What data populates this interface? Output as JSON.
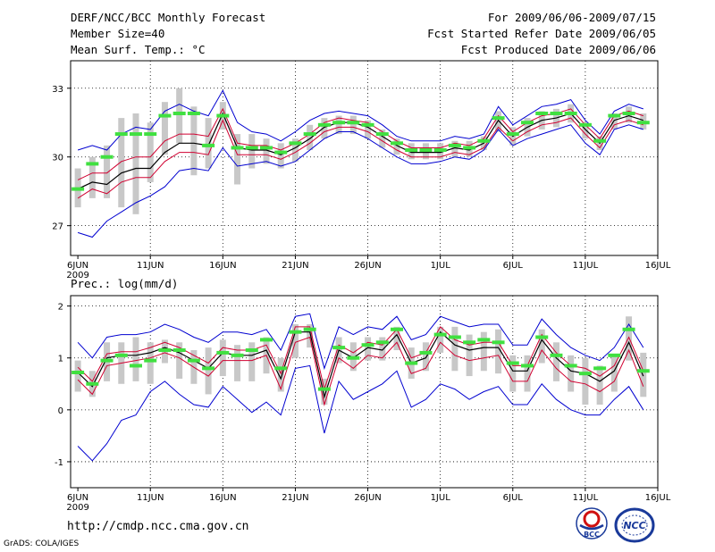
{
  "header": {
    "title": "DERF/NCC/BCC Monthly Forecast",
    "member_size": "Member Size=40",
    "variable": "Mean Surf. Temp.: °C",
    "period": "For 2009/06/06-2009/07/15",
    "started": "Fcst Started Refer Date 2009/06/05",
    "produced": "Fcst Produced Date 2009/06/06"
  },
  "footer": {
    "url": "http://cmdp.ncc.cma.gov.cn",
    "grads": "GrADS: COLA/IGES",
    "bcc_logo": "BCC",
    "ncc_logo": "NCC"
  },
  "colors": {
    "mean": "#000000",
    "inner": "#d00030",
    "outer": "#0000d0",
    "box": "#c8c8c8",
    "median": "#40e040",
    "grid": "#000000"
  },
  "chart_data": [
    {
      "type": "line",
      "title": "Mean Surf. Temp.: °C",
      "x": [
        1,
        2,
        3,
        4,
        5,
        6,
        7,
        8,
        9,
        10,
        11,
        12,
        13,
        14,
        15,
        16,
        17,
        18,
        19,
        20,
        21,
        22,
        23,
        24,
        25,
        26,
        27,
        28,
        29,
        30,
        31,
        32,
        33,
        34,
        35,
        36,
        37,
        38,
        39,
        40
      ],
      "xticks": [
        "6JUN",
        "11JUN",
        "16JUN",
        "21JUN",
        "26JUN",
        "1JUL",
        "6JUL",
        "11JUL",
        "16JUL"
      ],
      "xtick_positions": [
        1,
        6,
        11,
        16,
        21,
        26,
        31,
        36,
        41
      ],
      "xsublabel": "2009",
      "yticks": [
        27,
        30,
        33
      ],
      "ylim": [
        25.7,
        34.2
      ],
      "xlim": [
        0.5,
        41
      ],
      "series": [
        {
          "name": "ensemble mean",
          "color": "mean",
          "values": [
            28.6,
            28.9,
            28.8,
            29.3,
            29.5,
            29.5,
            30.2,
            30.6,
            30.6,
            30.5,
            31.9,
            30.4,
            30.3,
            30.3,
            30.1,
            30.4,
            30.8,
            31.3,
            31.5,
            31.5,
            31.3,
            30.9,
            30.5,
            30.2,
            30.2,
            30.2,
            30.4,
            30.3,
            30.6,
            31.6,
            30.9,
            31.3,
            31.6,
            31.7,
            31.9,
            31.2,
            30.6,
            31.6,
            31.8,
            31.6
          ]
        },
        {
          "name": "upper inner",
          "color": "inner",
          "values": [
            29.0,
            29.3,
            29.3,
            29.8,
            30.0,
            30.0,
            30.7,
            31.0,
            31.0,
            30.9,
            32.1,
            30.6,
            30.5,
            30.5,
            30.3,
            30.6,
            31.0,
            31.5,
            31.7,
            31.6,
            31.5,
            31.1,
            30.7,
            30.4,
            30.4,
            30.4,
            30.6,
            30.5,
            30.8,
            31.8,
            31.1,
            31.5,
            31.8,
            31.9,
            32.1,
            31.4,
            30.8,
            31.8,
            32.0,
            31.8
          ]
        },
        {
          "name": "lower inner",
          "color": "inner",
          "values": [
            28.2,
            28.6,
            28.4,
            28.9,
            29.1,
            29.1,
            29.8,
            30.2,
            30.2,
            30.1,
            31.6,
            30.1,
            30.1,
            30.1,
            29.9,
            30.2,
            30.6,
            31.1,
            31.3,
            31.3,
            31.1,
            30.7,
            30.3,
            30.0,
            30.0,
            30.0,
            30.2,
            30.1,
            30.4,
            31.3,
            30.7,
            31.1,
            31.4,
            31.5,
            31.7,
            31.0,
            30.4,
            31.4,
            31.6,
            31.4
          ]
        },
        {
          "name": "upper outer",
          "color": "outer",
          "values": [
            30.3,
            30.5,
            30.3,
            31.0,
            31.3,
            31.2,
            32.0,
            32.3,
            32.0,
            31.8,
            32.9,
            31.5,
            31.1,
            31.0,
            30.7,
            31.1,
            31.6,
            31.9,
            32.0,
            31.9,
            31.8,
            31.4,
            30.9,
            30.7,
            30.7,
            30.7,
            30.9,
            30.8,
            31.0,
            32.2,
            31.4,
            31.8,
            32.2,
            32.3,
            32.5,
            31.6,
            31.0,
            32.0,
            32.3,
            32.1
          ]
        },
        {
          "name": "lower outer",
          "color": "outer",
          "values": [
            26.7,
            26.5,
            27.2,
            27.6,
            28.0,
            28.3,
            28.7,
            29.4,
            29.5,
            29.4,
            30.4,
            29.6,
            29.7,
            29.8,
            29.6,
            29.8,
            30.3,
            30.8,
            31.1,
            31.1,
            30.8,
            30.4,
            30.0,
            29.7,
            29.7,
            29.8,
            30.0,
            29.9,
            30.3,
            31.2,
            30.5,
            30.8,
            31.0,
            31.2,
            31.4,
            30.6,
            30.1,
            31.2,
            31.4,
            31.2
          ]
        },
        {
          "name": "box top",
          "color": "box",
          "values": [
            29.5,
            30.0,
            30.5,
            31.7,
            31.9,
            31.5,
            32.4,
            33.0,
            32.2,
            31.7,
            32.4,
            31.0,
            31.0,
            30.8,
            30.6,
            30.8,
            31.4,
            31.7,
            31.8,
            31.8,
            31.6,
            31.2,
            30.8,
            30.6,
            30.6,
            30.6,
            30.7,
            30.7,
            30.9,
            32.0,
            31.3,
            31.7,
            32.0,
            32.1,
            32.3,
            31.5,
            30.9,
            31.9,
            32.2,
            31.9
          ]
        },
        {
          "name": "box bottom",
          "color": "box",
          "values": [
            27.8,
            28.2,
            28.2,
            27.8,
            27.5,
            28.9,
            30.1,
            30.6,
            29.2,
            29.5,
            31.2,
            28.8,
            29.5,
            29.7,
            29.5,
            29.8,
            30.3,
            30.8,
            31.0,
            31.0,
            30.8,
            30.4,
            30.1,
            29.9,
            29.9,
            29.9,
            30.0,
            30.0,
            30.3,
            31.1,
            30.5,
            30.9,
            31.2,
            31.3,
            31.5,
            30.8,
            30.3,
            31.2,
            31.5,
            31.2
          ]
        },
        {
          "name": "median",
          "color": "median",
          "values": [
            28.6,
            29.7,
            30.0,
            31.0,
            31.0,
            31.0,
            31.8,
            31.9,
            31.9,
            30.5,
            31.8,
            30.4,
            30.4,
            30.4,
            30.2,
            30.6,
            31.0,
            31.4,
            31.5,
            31.5,
            31.4,
            31.0,
            30.6,
            30.3,
            30.3,
            30.3,
            30.5,
            30.4,
            30.7,
            31.7,
            31.0,
            31.5,
            31.9,
            31.9,
            31.9,
            31.4,
            30.7,
            31.8,
            31.9,
            31.5
          ]
        }
      ]
    },
    {
      "type": "line",
      "title": "Prec.: log(mm/d)",
      "x": [
        1,
        2,
        3,
        4,
        5,
        6,
        7,
        8,
        9,
        10,
        11,
        12,
        13,
        14,
        15,
        16,
        17,
        18,
        19,
        20,
        21,
        22,
        23,
        24,
        25,
        26,
        27,
        28,
        29,
        30,
        31,
        32,
        33,
        34,
        35,
        36,
        37,
        38,
        39,
        40
      ],
      "xticks": [
        "6JUN",
        "11JUN",
        "16JUN",
        "21JUN",
        "26JUN",
        "1JUL",
        "6JUL",
        "11JUL",
        "16JUL"
      ],
      "xtick_positions": [
        1,
        6,
        11,
        16,
        21,
        26,
        31,
        36,
        41
      ],
      "xsublabel": "2009",
      "yticks": [
        -1,
        0,
        1,
        2
      ],
      "ylim": [
        -1.5,
        2.2
      ],
      "xlim": [
        0.5,
        41
      ],
      "series": [
        {
          "name": "ensemble mean",
          "color": "mean",
          "values": [
            0.72,
            0.45,
            1.0,
            1.05,
            1.05,
            1.1,
            1.2,
            1.1,
            0.95,
            0.8,
            1.1,
            1.05,
            1.05,
            1.15,
            0.6,
            1.5,
            1.5,
            0.25,
            1.15,
            1.0,
            1.2,
            1.15,
            1.45,
            0.9,
            1.0,
            1.5,
            1.25,
            1.15,
            1.2,
            1.2,
            0.75,
            0.75,
            1.35,
            1.0,
            0.75,
            0.7,
            0.55,
            0.75,
            1.3,
            0.65
          ]
        },
        {
          "name": "upper inner",
          "color": "inner",
          "values": [
            0.82,
            0.55,
            1.08,
            1.12,
            1.12,
            1.2,
            1.3,
            1.2,
            1.05,
            0.9,
            1.2,
            1.15,
            1.15,
            1.25,
            0.7,
            1.6,
            1.6,
            0.4,
            1.25,
            1.1,
            1.3,
            1.25,
            1.55,
            1.0,
            1.1,
            1.6,
            1.35,
            1.25,
            1.3,
            1.3,
            0.85,
            0.85,
            1.45,
            1.1,
            0.85,
            0.8,
            0.65,
            0.85,
            1.4,
            0.75
          ]
        },
        {
          "name": "lower inner",
          "color": "inner",
          "values": [
            0.58,
            0.3,
            0.85,
            0.9,
            0.95,
            1.0,
            1.1,
            1.0,
            0.82,
            0.65,
            0.95,
            0.95,
            0.95,
            1.05,
            0.4,
            1.3,
            1.4,
            0.1,
            1.0,
            0.8,
            1.05,
            1.0,
            1.3,
            0.7,
            0.8,
            1.3,
            1.05,
            0.95,
            1.0,
            1.05,
            0.55,
            0.55,
            1.15,
            0.8,
            0.55,
            0.5,
            0.35,
            0.55,
            1.15,
            0.45
          ]
        },
        {
          "name": "upper outer",
          "color": "outer",
          "values": [
            1.3,
            1.0,
            1.4,
            1.45,
            1.45,
            1.5,
            1.65,
            1.55,
            1.4,
            1.3,
            1.5,
            1.5,
            1.45,
            1.55,
            1.15,
            1.8,
            1.85,
            0.8,
            1.6,
            1.45,
            1.6,
            1.55,
            1.8,
            1.35,
            1.45,
            1.8,
            1.7,
            1.6,
            1.65,
            1.65,
            1.25,
            1.25,
            1.75,
            1.45,
            1.2,
            1.05,
            0.95,
            1.2,
            1.65,
            1.2
          ]
        },
        {
          "name": "lower outer",
          "color": "outer",
          "values": [
            -0.7,
            -0.98,
            -0.65,
            -0.2,
            -0.1,
            0.35,
            0.55,
            0.3,
            0.1,
            0.05,
            0.45,
            0.2,
            -0.05,
            0.15,
            -0.1,
            0.8,
            0.85,
            -0.45,
            0.55,
            0.2,
            0.35,
            0.5,
            0.75,
            0.05,
            0.2,
            0.5,
            0.4,
            0.2,
            0.35,
            0.45,
            0.1,
            0.1,
            0.5,
            0.2,
            0.0,
            -0.1,
            -0.1,
            0.2,
            0.45,
            0.0
          ]
        },
        {
          "name": "box top",
          "color": "box",
          "values": [
            0.95,
            0.75,
            1.3,
            1.3,
            1.4,
            1.3,
            1.35,
            1.3,
            1.15,
            1.2,
            1.35,
            1.25,
            1.3,
            1.4,
            1.0,
            1.65,
            1.65,
            0.6,
            1.4,
            1.3,
            1.4,
            1.4,
            1.6,
            1.2,
            1.3,
            1.6,
            1.6,
            1.45,
            1.5,
            1.55,
            1.05,
            1.05,
            1.55,
            1.3,
            1.05,
            1.0,
            0.85,
            1.05,
            1.8,
            1.1
          ]
        },
        {
          "name": "box bottom",
          "color": "box",
          "values": [
            0.35,
            0.25,
            0.55,
            0.5,
            0.55,
            0.5,
            0.9,
            0.6,
            0.5,
            0.3,
            0.65,
            0.55,
            0.55,
            0.7,
            0.35,
            1.0,
            1.2,
            0.1,
            0.9,
            0.75,
            0.95,
            0.95,
            1.15,
            0.6,
            0.75,
            1.1,
            0.75,
            0.65,
            0.75,
            0.7,
            0.35,
            0.35,
            0.9,
            0.55,
            0.35,
            0.1,
            0.1,
            0.35,
            0.95,
            0.25
          ]
        },
        {
          "name": "median",
          "color": "median",
          "values": [
            0.72,
            0.5,
            0.95,
            1.05,
            0.85,
            0.95,
            1.15,
            1.15,
            0.95,
            0.8,
            1.1,
            1.05,
            1.15,
            1.35,
            0.8,
            1.5,
            1.55,
            0.4,
            1.2,
            1.0,
            1.25,
            1.3,
            1.55,
            0.9,
            1.1,
            1.45,
            1.4,
            1.3,
            1.35,
            1.3,
            0.9,
            0.85,
            1.4,
            1.05,
            0.85,
            0.7,
            0.8,
            1.05,
            1.55,
            0.75
          ]
        }
      ]
    }
  ]
}
